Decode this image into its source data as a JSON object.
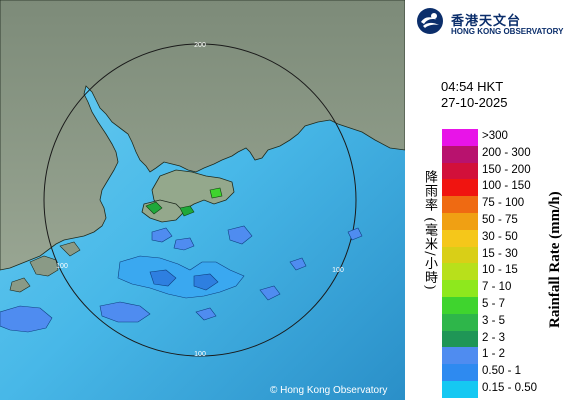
{
  "map": {
    "copyright": "© Hong Kong Observatory",
    "range_rings": [
      {
        "label": "200",
        "position": "top"
      },
      {
        "label": "100",
        "position": "left"
      },
      {
        "label": "100",
        "position": "right"
      },
      {
        "label": "100",
        "position": "bottom"
      }
    ],
    "colors": {
      "sea": "#3fb4e8",
      "land": "#8a9a86"
    }
  },
  "header": {
    "logo_cn": "香港天文台",
    "logo_en": "HONG KONG OBSERVATORY"
  },
  "timestamp": {
    "time": "04:54 HKT",
    "date": "27-10-2025"
  },
  "legend": {
    "title_cn": "降雨率 (毫米/小時)",
    "title_en": "Rainfall Rate (mm/h)",
    "items": [
      {
        "label": ">300",
        "color": "#e814e8"
      },
      {
        "label": "200 - 300",
        "color": "#b8126e"
      },
      {
        "label": "150 - 200",
        "color": "#d2103a"
      },
      {
        "label": "100 - 150",
        "color": "#f01410"
      },
      {
        "label": "75 - 100",
        "color": "#ef6a12"
      },
      {
        "label": "50 - 75",
        "color": "#f0a013"
      },
      {
        "label": "30 - 50",
        "color": "#f5c71a"
      },
      {
        "label": "15 - 30",
        "color": "#d9cf17"
      },
      {
        "label": "10 - 15",
        "color": "#b8e01b"
      },
      {
        "label": "7 - 10",
        "color": "#8ee81d"
      },
      {
        "label": "5 - 7",
        "color": "#3fd42e"
      },
      {
        "label": "3 - 5",
        "color": "#2eb64a"
      },
      {
        "label": "2 - 3",
        "color": "#1f9656"
      },
      {
        "label": "1 - 2",
        "color": "#4f8cf0"
      },
      {
        "label": "0.50 - 1",
        "color": "#2e8af0"
      },
      {
        "label": "0.15 - 0.50",
        "color": "#15c8f2"
      }
    ]
  }
}
